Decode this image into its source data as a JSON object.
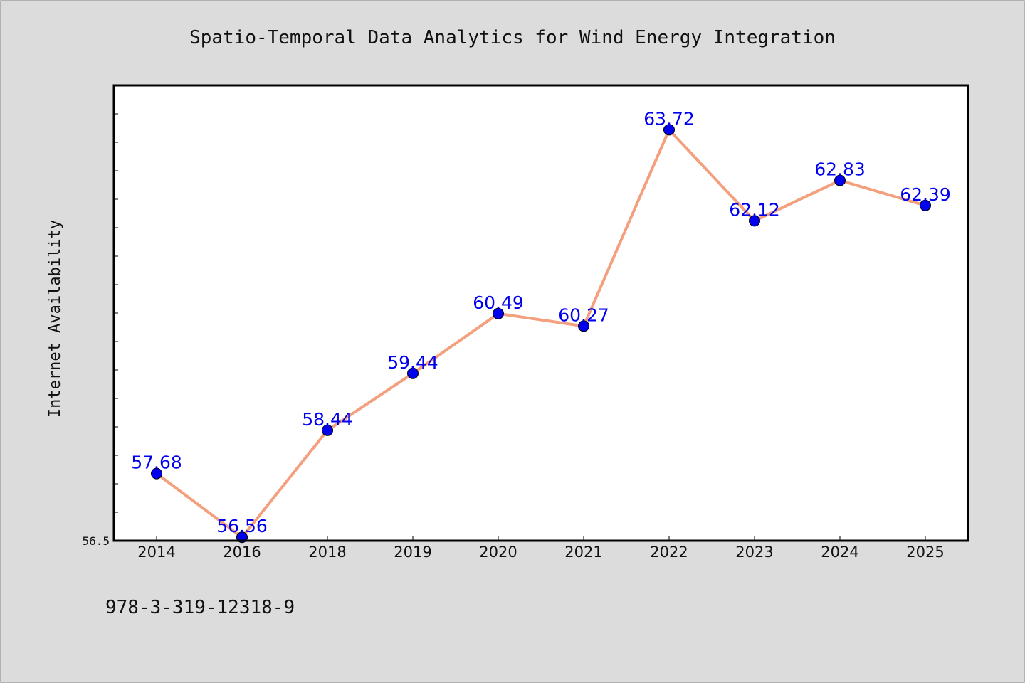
{
  "chart_data": {
    "type": "line",
    "title": "Spatio-Temporal Data Analytics for Wind Energy Integration",
    "xlabel": "",
    "ylabel": "Internet Availability",
    "categories": [
      "2014",
      "2016",
      "2018",
      "2019",
      "2020",
      "2021",
      "2022",
      "2023",
      "2024",
      "2025"
    ],
    "series": [
      {
        "values": [
          57.68,
          56.56,
          58.44,
          59.44,
          60.49,
          60.27,
          63.72,
          62.12,
          62.83,
          62.39
        ],
        "labels": [
          "57.68",
          "56.56",
          "58.44",
          "59.44",
          "60.49",
          "60.27",
          "63.72",
          "62.12",
          "62.83",
          "62.39"
        ]
      }
    ],
    "ylim": [
      56.5,
      64.5
    ],
    "yticks": [
      56.5
    ],
    "ytick_labels": [
      "56.5"
    ],
    "minor_tick_step": 0.5,
    "grid": false,
    "legend": "none",
    "line_color": "#f4a07e",
    "marker_color": "#0000ee",
    "label_color": "#0000ee"
  },
  "footer": {
    "text": "978-3-319-12318-9"
  }
}
